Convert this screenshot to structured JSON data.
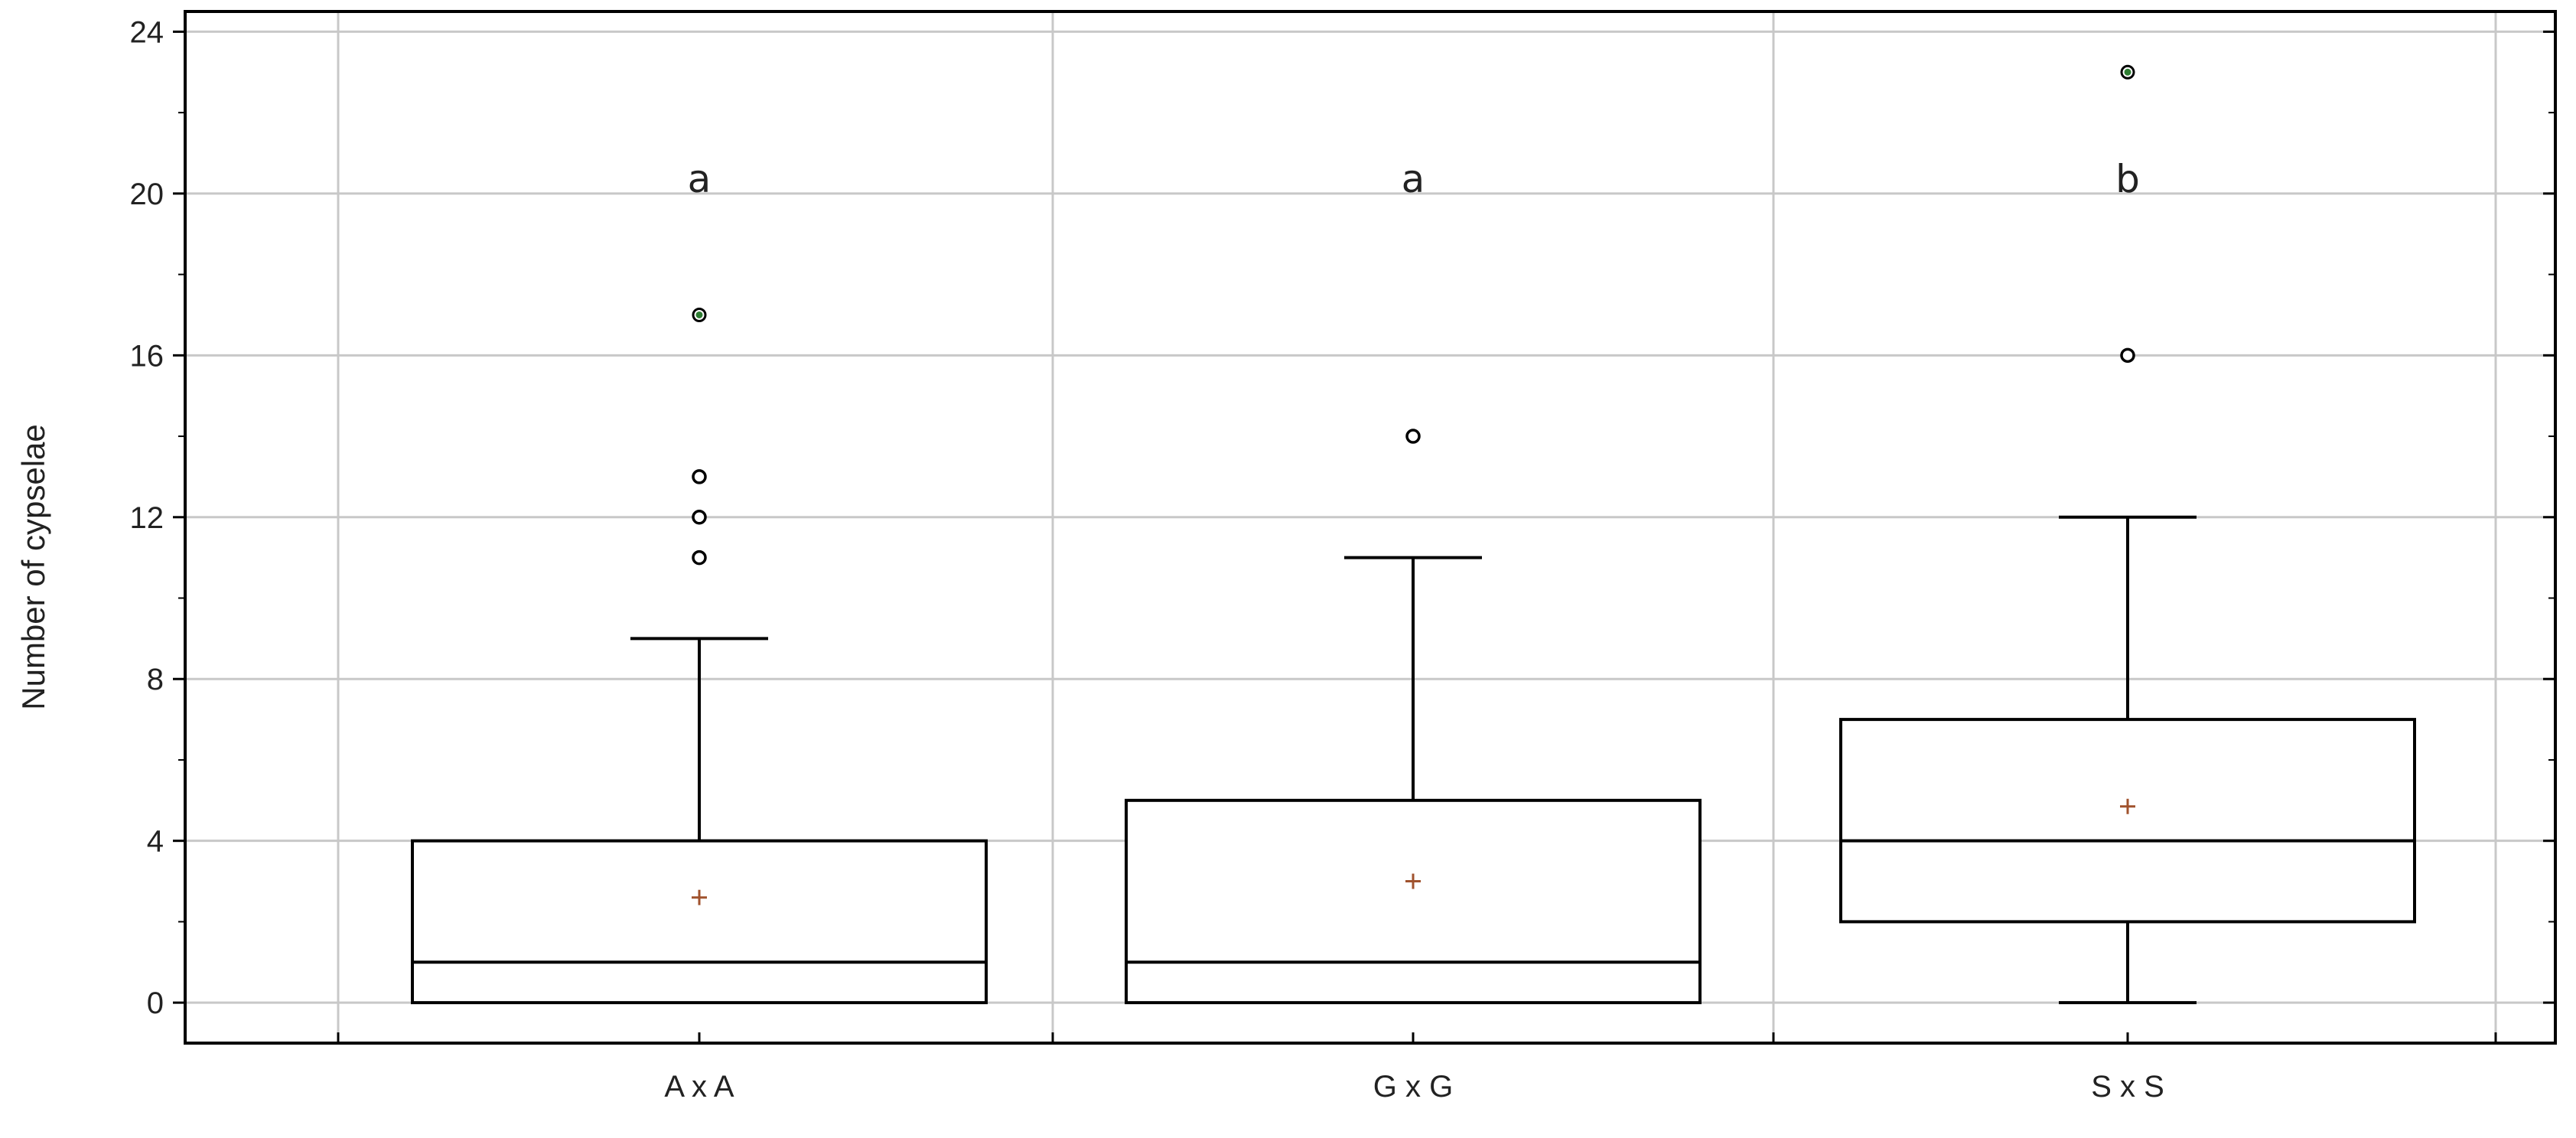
{
  "chart_data": {
    "type": "box",
    "title": "",
    "xlabel": "",
    "ylabel": "Number of cypselae",
    "ylim": [
      -1,
      24.5
    ],
    "yticks": [
      0,
      4,
      8,
      12,
      16,
      20,
      24
    ],
    "grid": true,
    "categories": [
      "A x A",
      "G x G",
      "S x S"
    ],
    "boxes": [
      {
        "category": "A x A",
        "whisker_low": 0,
        "q1": 0,
        "median": 1,
        "q3": 4,
        "whisker_high": 9,
        "mean": 2.6,
        "outliers": [
          11,
          12,
          13
        ],
        "far_outliers": [
          17
        ],
        "letter": "a"
      },
      {
        "category": "G x G",
        "whisker_low": 0,
        "q1": 0,
        "median": 1,
        "q3": 5,
        "whisker_high": 11,
        "mean": 3.0,
        "outliers": [
          14
        ],
        "far_outliers": [],
        "letter": "a"
      },
      {
        "category": "S x S",
        "whisker_low": 0,
        "q1": 2,
        "median": 4,
        "q3": 7,
        "whisker_high": 12,
        "mean": 4.85,
        "outliers": [
          16
        ],
        "far_outliers": [
          23
        ],
        "letter": "b"
      }
    ],
    "colors": {
      "box": "#000000",
      "grid": "#c8c8c8",
      "mean_marker": "#a0522d",
      "far_outlier": "#2e7d32",
      "outlier": "#000000"
    }
  }
}
